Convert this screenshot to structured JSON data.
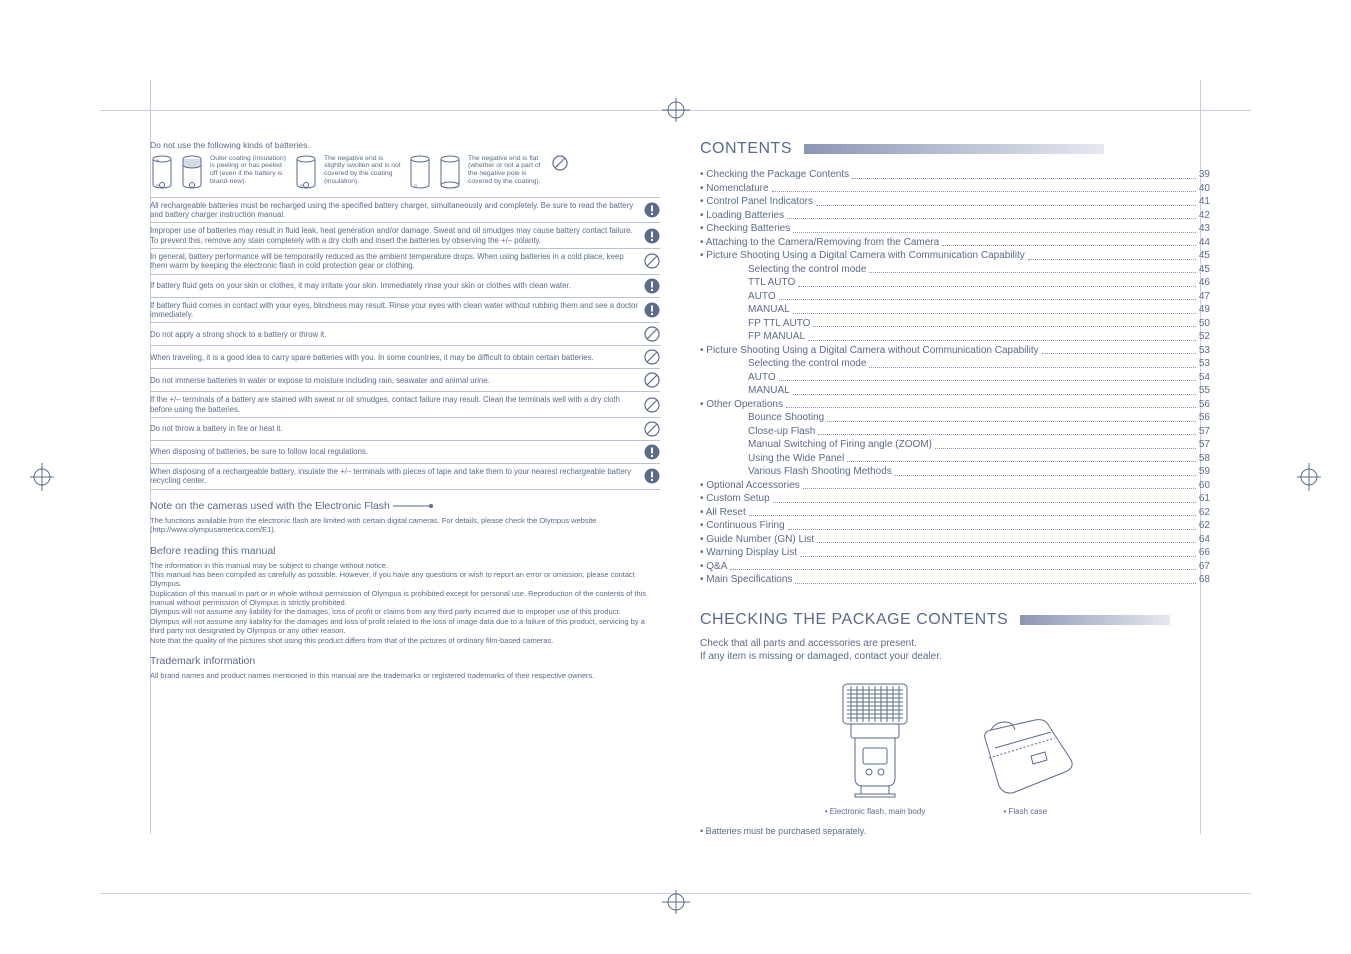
{
  "colors": {
    "text": "#5a6b8c",
    "line": "#b8c0d4",
    "softline": "#c8cedc",
    "grad_start": "#8a96b5",
    "grad_end": "#e6e9f0",
    "icon_fill": "#5a6b8c"
  },
  "left": {
    "intro": "Do not use the following kinds of batteries.",
    "batt1": "Outer coating (insulation) is peeling or has peeled off (even if the battery is brand-new).",
    "batt2": "The negative end is slightly swollen and is not covered by the coating (insulation).",
    "batt3": "The negative end is flat (whether or not a part of the negative pole is covered by the coating).",
    "warnings": [
      {
        "t": "All rechargeable batteries must be recharged using the specified battery charger, simultaneously and completely. Be sure to read the battery and battery charger instruction manual.",
        "i": "filled"
      },
      {
        "t": "Improper use of batteries may result in fluid leak, heat generation and/or damage. Sweat and oil smudges may cause battery contact failure. To prevent this, remove any stain completely with a dry cloth and insert the batteries by observing the +/– polarity.",
        "i": "filled"
      },
      {
        "t": "In general, battery performance will be temporarily reduced as the ambient temperature drops. When using batteries in a cold place, keep them warm by keeping the electronic flash in cold protection gear or clothing.",
        "i": "outline"
      },
      {
        "t": "If battery fluid gets on your skin or clothes, it may irritate your skin. Immediately rinse your skin or clothes with clean water.",
        "i": "filled"
      },
      {
        "t": "If battery fluid comes in contact with your eyes, blindness may result. Rinse your eyes with clean water without rubbing them and see a doctor immediately.",
        "i": "filled"
      },
      {
        "t": "Do not apply a strong shock to a battery or throw it.",
        "i": "outline"
      },
      {
        "t": "When traveling, it is a good idea to carry spare batteries with you. In some countries, it may be difficult to obtain certain batteries.",
        "i": "outline"
      },
      {
        "t": "Do not immerse batteries in water or expose to moisture including rain, seawater and animal urine.",
        "i": "outline"
      },
      {
        "t": "If the +/– terminals of a battery are stained with sweat or oil smudges, contact failure may result. Clean the terminals well with a dry cloth before using the batteries.",
        "i": "outline"
      },
      {
        "t": "Do not throw a battery in fire or heat it.",
        "i": "outline"
      },
      {
        "t": "When disposing of batteries, be sure to follow local regulations.",
        "i": "filled"
      },
      {
        "t": "When disposing of a rechargeable battery, insulate the +/– terminals with pieces of tape and take them to your nearest rechargeable battery recycling center.",
        "i": "filled"
      }
    ],
    "note_title": "Note on the cameras used with the Electronic Flash",
    "note_body": "The functions available from the electronic flash are limited with certain digital cameras. For details, please check the Olympus website (http://www.olympusamerica.com/E1).",
    "before_title": "Before reading this manual",
    "before_items": [
      "The information in this manual may be subject to change without notice.",
      "This manual has been compiled as carefully as possible. However, if you have any questions or wish to report an error or omission, please contact Olympus.",
      "Duplication of this manual in part or in whole without permission of Olympus is prohibited except for personal use. Reproduction of the contents of this manual without permission of Olympus is strictly prohibited.",
      "Olympus will not assume any liability for the damages, loss of profit or claims from any third party incurred due to improper use of this product.",
      "Olympus will not assume any liability for the damages and loss of profit related to the loss of image data due to a failure of this product, servicing by a third party not designated by Olympus or any other reason.",
      "Note that the quality of the pictures shot using this product differs from that of the pictures of ordinary film-based cameras."
    ],
    "tm_title": "Trademark information",
    "tm_body": "All brand names and product names mentioned in this manual are the trademarks or registered trademarks of their respective owners."
  },
  "right": {
    "contents_title": "CONTENTS",
    "toc": [
      {
        "l": "• Checking the Package Contents",
        "p": "39",
        "i": 0
      },
      {
        "l": "• Nomenclature",
        "p": "40",
        "i": 0
      },
      {
        "l": "• Control Panel Indicators",
        "p": "41",
        "i": 0
      },
      {
        "l": "• Loading Batteries",
        "p": "42",
        "i": 0
      },
      {
        "l": "• Checking Batteries",
        "p": "43",
        "i": 0
      },
      {
        "l": "• Attaching to the Camera/Removing from the Camera",
        "p": "44",
        "i": 0
      },
      {
        "l": "• Picture Shooting Using a Digital Camera with Communication Capability",
        "p": "45",
        "i": 0
      },
      {
        "l": "Selecting the control mode",
        "p": "45",
        "i": 1
      },
      {
        "l": "TTL AUTO",
        "p": "46",
        "i": 1
      },
      {
        "l": "AUTO",
        "p": "47",
        "i": 1
      },
      {
        "l": "MANUAL",
        "p": "49",
        "i": 1
      },
      {
        "l": "FP TTL AUTO",
        "p": "50",
        "i": 1
      },
      {
        "l": "FP MANUAL",
        "p": "52",
        "i": 1
      },
      {
        "l": "• Picture Shooting Using a Digital Camera without Communication Capability",
        "p": "53",
        "i": 0
      },
      {
        "l": "Selecting the control mode",
        "p": "53",
        "i": 1
      },
      {
        "l": "AUTO",
        "p": "54",
        "i": 1
      },
      {
        "l": "MANUAL",
        "p": "55",
        "i": 1
      },
      {
        "l": "• Other Operations",
        "p": "56",
        "i": 0
      },
      {
        "l": "Bounce Shooting",
        "p": "56",
        "i": 1
      },
      {
        "l": "Close-up Flash",
        "p": "57",
        "i": 1
      },
      {
        "l": "Manual Switching of Firing angle (ZOOM)",
        "p": "57",
        "i": 1
      },
      {
        "l": "Using the Wide Panel",
        "p": "58",
        "i": 1
      },
      {
        "l": "Various Flash Shooting Methods",
        "p": "59",
        "i": 1
      },
      {
        "l": "• Optional Accessories",
        "p": "60",
        "i": 0
      },
      {
        "l": "• Custom Setup",
        "p": "61",
        "i": 0
      },
      {
        "l": "• All Reset",
        "p": "62",
        "i": 0
      },
      {
        "l": "• Continuous Firing",
        "p": "62",
        "i": 0
      },
      {
        "l": "• Guide Number (GN) List",
        "p": "64",
        "i": 0
      },
      {
        "l": "• Warning Display List",
        "p": "66",
        "i": 0
      },
      {
        "l": "• Q&A",
        "p": "67",
        "i": 0
      },
      {
        "l": "• Main Specifications",
        "p": "68",
        "i": 0
      }
    ],
    "pkg_title": "CHECKING THE PACKAGE CONTENTS",
    "pkg_l1": "Check that all parts and accessories are present.",
    "pkg_l2": "If any item is missing or damaged, contact your dealer.",
    "cap_flash": "• Electronic flash, main body",
    "cap_case": "• Flash case",
    "pkg_note": "• Batteries must be purchased separately."
  }
}
